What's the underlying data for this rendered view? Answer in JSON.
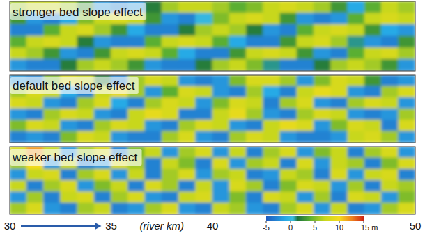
{
  "chart_data": [
    {
      "type": "heatmap",
      "title": "stronger bed slope effect",
      "xlim": [
        30,
        50
      ],
      "tick_labels": false,
      "cells": [
        [
          6,
          7,
          7,
          6,
          3,
          -2,
          -3,
          -2,
          2,
          6,
          7,
          7,
          6,
          4,
          5,
          7,
          8,
          7,
          6,
          3,
          -1,
          4,
          7,
          6
        ],
        [
          3,
          -2,
          -3,
          -1,
          5,
          7,
          8,
          7,
          3,
          -2,
          -3,
          0,
          5,
          7,
          8,
          7,
          3,
          -2,
          -3,
          -2,
          4,
          7,
          8,
          7
        ],
        [
          -3,
          -3,
          4,
          7,
          8,
          6,
          3,
          -1,
          -3,
          -3,
          2,
          6,
          7,
          6,
          2,
          -2,
          -3,
          4,
          7,
          8,
          7,
          3,
          -1,
          -2
        ],
        [
          4,
          7,
          8,
          7,
          2,
          -2,
          -3,
          -3,
          4,
          7,
          8,
          7,
          4,
          -1,
          -3,
          -3,
          3,
          7,
          8,
          6,
          1,
          -2,
          -3,
          3
        ],
        [
          7,
          6,
          3,
          -2,
          -3,
          3,
          7,
          8,
          7,
          4,
          -1,
          -3,
          -3,
          3,
          7,
          8,
          7,
          3,
          -2,
          -3,
          4,
          7,
          8,
          6
        ],
        [
          -2,
          -3,
          -3,
          2,
          6,
          7,
          6,
          3,
          -2,
          -3,
          -3,
          2,
          6,
          7,
          5,
          1,
          -3,
          -3,
          2,
          6,
          7,
          6,
          3,
          -2
        ]
      ]
    },
    {
      "type": "heatmap",
      "title": "default bed slope effect",
      "xlim": [
        30,
        50
      ],
      "tick_labels": false,
      "cells": [
        [
          -2,
          -3,
          5,
          8,
          7,
          2,
          -3,
          6,
          8,
          7,
          -2,
          -3,
          -2,
          5,
          8,
          8,
          6,
          -2,
          5,
          8,
          7,
          3,
          -3,
          -2
        ],
        [
          6,
          8,
          7,
          -1,
          -3,
          7,
          9,
          6,
          -2,
          4,
          8,
          7,
          -2,
          -3,
          6,
          -1,
          -3,
          7,
          9,
          8,
          -2,
          -3,
          6,
          8
        ],
        [
          8,
          7,
          -2,
          -3,
          6,
          8,
          -1,
          -3,
          6,
          8,
          7,
          -2,
          5,
          8,
          7,
          -3,
          6,
          8,
          -2,
          -3,
          6,
          8,
          7,
          -2
        ],
        [
          -2,
          -3,
          6,
          8,
          7,
          -2,
          -3,
          7,
          9,
          8,
          -3,
          -3,
          7,
          9,
          6,
          -2,
          -3,
          6,
          8,
          7,
          -2,
          -3,
          -2,
          6
        ],
        [
          5,
          8,
          7,
          -2,
          -3,
          6,
          8,
          7,
          -2,
          -3,
          6,
          8,
          7,
          -2,
          -3,
          7,
          9,
          8,
          -2,
          5,
          8,
          7,
          -3,
          8
        ],
        [
          -3,
          -2,
          -3,
          5,
          8,
          7,
          -2,
          -3,
          -3,
          6,
          8,
          -2,
          -3,
          6,
          8,
          7,
          -2,
          -3,
          -3,
          -2,
          7,
          8,
          6,
          -2
        ]
      ]
    },
    {
      "type": "heatmap",
      "title": "weaker bed slope effect",
      "xlim": [
        30,
        50
      ],
      "tick_labels": "x",
      "xticks": [
        30,
        35,
        40,
        50
      ],
      "xlabel": "(river km)",
      "colorbar_range": [
        -5,
        15
      ],
      "colorbar_ticks": [
        -5,
        0,
        5,
        10,
        {
          "value": 15,
          "label": "15 m"
        }
      ],
      "cells": [
        [
          8,
          12,
          7,
          -2,
          6,
          8,
          -3,
          5,
          7,
          -2,
          6,
          8,
          -2,
          7,
          -3,
          6,
          8,
          -2,
          5,
          7,
          -3,
          6,
          8,
          -2
        ],
        [
          6,
          10,
          -2,
          7,
          -3,
          -2,
          8,
          6,
          -3,
          7,
          5,
          -3,
          8,
          -2,
          6,
          7,
          -3,
          8,
          -2,
          7,
          6,
          -3,
          5,
          8
        ],
        [
          -2,
          7,
          8,
          -3,
          6,
          8,
          -2,
          7,
          -3,
          6,
          8,
          -2,
          6,
          7,
          -3,
          -2,
          7,
          6,
          -3,
          8,
          -2,
          7,
          8,
          -3
        ],
        [
          7,
          -3,
          6,
          8,
          -2,
          5,
          7,
          -3,
          8,
          6,
          -3,
          7,
          -2,
          8,
          6,
          -3,
          5,
          8,
          7,
          -2,
          6,
          -3,
          7,
          6
        ],
        [
          -2,
          6,
          -3,
          7,
          8,
          -3,
          6,
          8,
          -2,
          -3,
          7,
          8,
          -2,
          5,
          -3,
          8,
          7,
          -2,
          6,
          -3,
          8,
          7,
          -2,
          5
        ],
        [
          6,
          8,
          -2,
          -3,
          6,
          7,
          -3,
          -2,
          6,
          8,
          -2,
          -3,
          7,
          6,
          -2,
          -3,
          6,
          8,
          -2,
          7,
          -3,
          -2,
          6,
          8
        ]
      ]
    }
  ]
}
